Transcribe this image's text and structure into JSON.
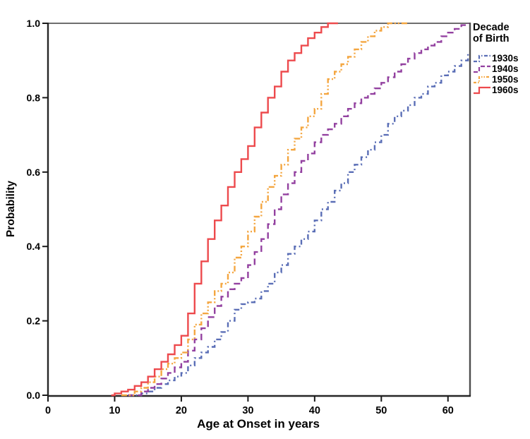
{
  "chart_data": {
    "type": "line",
    "subtype": "step-ecdf",
    "title": "",
    "xlabel": "Age at Onset in years",
    "ylabel": "Probability",
    "xlim": [
      0,
      63.2
    ],
    "ylim": [
      0,
      1
    ],
    "xticks": [
      0,
      10,
      20,
      30,
      40,
      50,
      60
    ],
    "xtick_labels": [
      "0",
      "10",
      "20",
      "30",
      "40",
      "50",
      "60"
    ],
    "yticks": [
      0,
      0.2,
      0.4,
      0.6,
      0.8,
      1
    ],
    "ytick_labels": [
      "0.0",
      "0.2",
      "0.4",
      "0.6",
      "0.8",
      "1.0"
    ],
    "grid": false,
    "legend_title": "Decade of Birth",
    "legend_position": "right-top",
    "frame_color_dark": "#262626",
    "frame_color_light": "#6e6e6e",
    "series": [
      {
        "name": "1930s",
        "color": "#5a6eb6",
        "dash": "dash-dot",
        "points": [
          [
            12,
            0
          ],
          [
            14,
            0.005
          ],
          [
            15,
            0.01
          ],
          [
            16,
            0.02
          ],
          [
            17,
            0.03
          ],
          [
            18,
            0.04
          ],
          [
            19,
            0.05
          ],
          [
            20,
            0.06
          ],
          [
            21,
            0.08
          ],
          [
            22,
            0.1
          ],
          [
            23,
            0.115
          ],
          [
            24,
            0.13
          ],
          [
            25,
            0.15
          ],
          [
            26,
            0.17
          ],
          [
            27,
            0.2
          ],
          [
            28,
            0.23
          ],
          [
            29,
            0.245
          ],
          [
            30,
            0.25
          ],
          [
            31,
            0.26
          ],
          [
            32,
            0.28
          ],
          [
            33,
            0.3
          ],
          [
            34,
            0.33
          ],
          [
            35,
            0.35
          ],
          [
            36,
            0.38
          ],
          [
            37,
            0.4
          ],
          [
            38,
            0.42
          ],
          [
            39,
            0.44
          ],
          [
            40,
            0.47
          ],
          [
            41,
            0.5
          ],
          [
            42,
            0.52
          ],
          [
            43,
            0.55
          ],
          [
            44,
            0.57
          ],
          [
            45,
            0.6
          ],
          [
            46,
            0.62
          ],
          [
            47,
            0.64
          ],
          [
            48,
            0.66
          ],
          [
            49,
            0.68
          ],
          [
            50,
            0.7
          ],
          [
            51,
            0.73
          ],
          [
            52,
            0.75
          ],
          [
            53,
            0.765
          ],
          [
            54,
            0.78
          ],
          [
            55,
            0.8
          ],
          [
            56,
            0.81
          ],
          [
            57,
            0.83
          ],
          [
            58,
            0.84
          ],
          [
            59,
            0.86
          ],
          [
            60,
            0.87
          ],
          [
            61,
            0.885
          ],
          [
            62,
            0.9
          ],
          [
            63,
            0.92
          ],
          [
            63.2,
            0.92
          ]
        ]
      },
      {
        "name": "1940s",
        "color": "#9341a0",
        "dash": "dashed",
        "points": [
          [
            12,
            0
          ],
          [
            14,
            0.01
          ],
          [
            15,
            0.02
          ],
          [
            16,
            0.03
          ],
          [
            17,
            0.045
          ],
          [
            18,
            0.06
          ],
          [
            19,
            0.075
          ],
          [
            20,
            0.09
          ],
          [
            21,
            0.12
          ],
          [
            22,
            0.15
          ],
          [
            23,
            0.18
          ],
          [
            24,
            0.21
          ],
          [
            25,
            0.24
          ],
          [
            26,
            0.265
          ],
          [
            27,
            0.285
          ],
          [
            28,
            0.3
          ],
          [
            29,
            0.315
          ],
          [
            30,
            0.35
          ],
          [
            31,
            0.385
          ],
          [
            32,
            0.42
          ],
          [
            33,
            0.46
          ],
          [
            34,
            0.5
          ],
          [
            35,
            0.54
          ],
          [
            36,
            0.57
          ],
          [
            37,
            0.6
          ],
          [
            38,
            0.63
          ],
          [
            39,
            0.65
          ],
          [
            40,
            0.68
          ],
          [
            41,
            0.7
          ],
          [
            42,
            0.715
          ],
          [
            43,
            0.73
          ],
          [
            44,
            0.75
          ],
          [
            45,
            0.77
          ],
          [
            46,
            0.785
          ],
          [
            47,
            0.8
          ],
          [
            48,
            0.81
          ],
          [
            49,
            0.825
          ],
          [
            50,
            0.84
          ],
          [
            51,
            0.855
          ],
          [
            52,
            0.87
          ],
          [
            53,
            0.89
          ],
          [
            54,
            0.905
          ],
          [
            55,
            0.92
          ],
          [
            56,
            0.93
          ],
          [
            57,
            0.94
          ],
          [
            58,
            0.95
          ],
          [
            59,
            0.965
          ],
          [
            60,
            0.975
          ],
          [
            61,
            0.985
          ],
          [
            62,
            0.995
          ],
          [
            63,
            1.0
          ]
        ]
      },
      {
        "name": "1950s",
        "color": "#f4a640",
        "dash": "dash-dot-dot",
        "points": [
          [
            11,
            0
          ],
          [
            13,
            0.01
          ],
          [
            14,
            0.02
          ],
          [
            15,
            0.035
          ],
          [
            16,
            0.05
          ],
          [
            17,
            0.07
          ],
          [
            18,
            0.085
          ],
          [
            19,
            0.1
          ],
          [
            20,
            0.115
          ],
          [
            21,
            0.15
          ],
          [
            22,
            0.19
          ],
          [
            23,
            0.22
          ],
          [
            24,
            0.25
          ],
          [
            25,
            0.28
          ],
          [
            26,
            0.3
          ],
          [
            27,
            0.33
          ],
          [
            28,
            0.37
          ],
          [
            29,
            0.4
          ],
          [
            30,
            0.44
          ],
          [
            31,
            0.48
          ],
          [
            32,
            0.52
          ],
          [
            33,
            0.56
          ],
          [
            34,
            0.59
          ],
          [
            35,
            0.62
          ],
          [
            36,
            0.66
          ],
          [
            37,
            0.69
          ],
          [
            38,
            0.72
          ],
          [
            39,
            0.75
          ],
          [
            40,
            0.77
          ],
          [
            41,
            0.81
          ],
          [
            42,
            0.85
          ],
          [
            43,
            0.87
          ],
          [
            44,
            0.89
          ],
          [
            45,
            0.91
          ],
          [
            46,
            0.93
          ],
          [
            47,
            0.95
          ],
          [
            48,
            0.965
          ],
          [
            49,
            0.98
          ],
          [
            50,
            0.99
          ],
          [
            51,
            1.0
          ],
          [
            54,
            1.0
          ]
        ]
      },
      {
        "name": "1960s",
        "color": "#ed4a4d",
        "dash": "solid",
        "points": [
          [
            9.5,
            0
          ],
          [
            10,
            0.005
          ],
          [
            11,
            0.01
          ],
          [
            12,
            0.015
          ],
          [
            13,
            0.025
          ],
          [
            14,
            0.035
          ],
          [
            15,
            0.05
          ],
          [
            16,
            0.07
          ],
          [
            17,
            0.09
          ],
          [
            18,
            0.11
          ],
          [
            19,
            0.135
          ],
          [
            20,
            0.16
          ],
          [
            21,
            0.22
          ],
          [
            22,
            0.3
          ],
          [
            23,
            0.36
          ],
          [
            24,
            0.42
          ],
          [
            25,
            0.47
          ],
          [
            26,
            0.51
          ],
          [
            27,
            0.56
          ],
          [
            28,
            0.6
          ],
          [
            29,
            0.635
          ],
          [
            30,
            0.67
          ],
          [
            31,
            0.72
          ],
          [
            32,
            0.76
          ],
          [
            33,
            0.8
          ],
          [
            34,
            0.83
          ],
          [
            35,
            0.87
          ],
          [
            36,
            0.9
          ],
          [
            37,
            0.92
          ],
          [
            38,
            0.94
          ],
          [
            39,
            0.96
          ],
          [
            40,
            0.975
          ],
          [
            41,
            0.99
          ],
          [
            42,
            1.0
          ],
          [
            43.5,
            1.0
          ]
        ]
      }
    ]
  }
}
